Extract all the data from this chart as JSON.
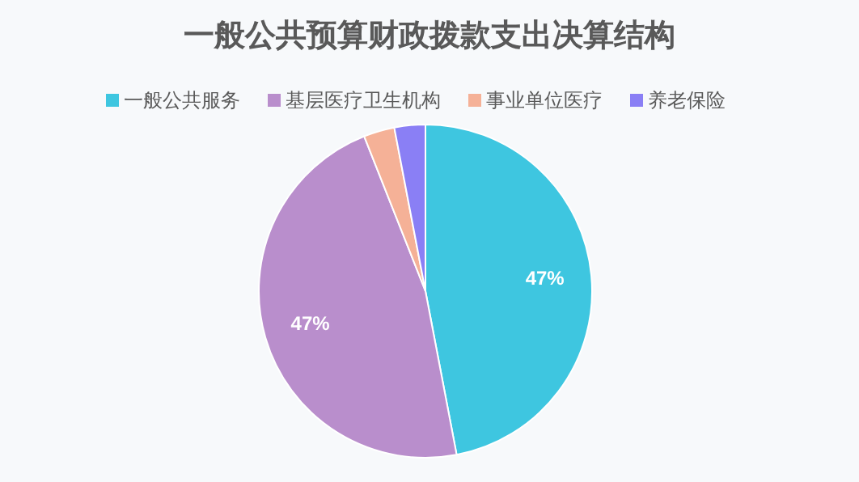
{
  "chart_data": {
    "type": "pie",
    "title": "一般公共预算财政拨款支出决算结构",
    "categories": [
      "一般公共服务",
      "基层医疗卫生机构",
      "事业单位医疗",
      "养老保险"
    ],
    "values": [
      47,
      47,
      3,
      3
    ],
    "colors": [
      "#3ec6e0",
      "#b98ecc",
      "#f5b197",
      "#8a7ff5"
    ],
    "value_labels": [
      "47%",
      "47%",
      null,
      null
    ],
    "legend": "top"
  }
}
